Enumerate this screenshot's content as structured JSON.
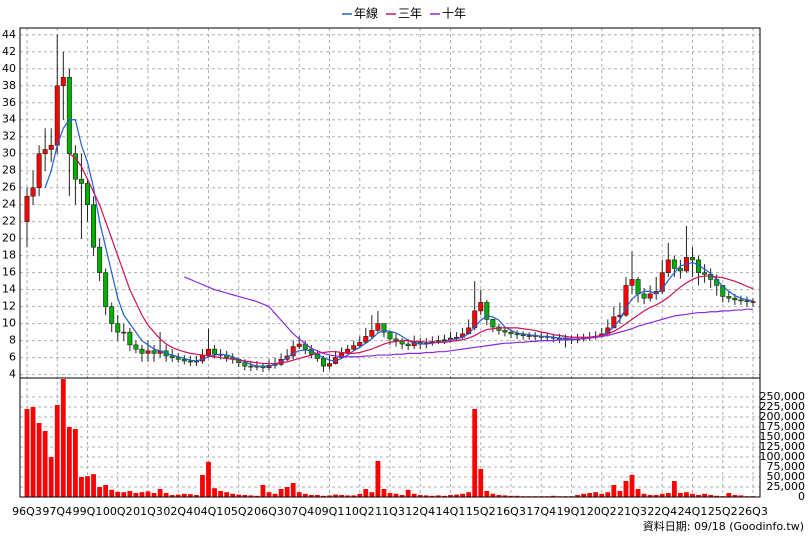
{
  "chart_data": [
    {
      "type": "candlestick",
      "categories": [
        "96Q3",
        null,
        null,
        null,
        null,
        "97Q4",
        null,
        null,
        null,
        null,
        "99Q1",
        null,
        null,
        null,
        null,
        "00Q2",
        null,
        null,
        null,
        null,
        "01Q3",
        null,
        null,
        null,
        null,
        "02Q4",
        null,
        null,
        null,
        null,
        "04Q1",
        null,
        null,
        null,
        null,
        "05Q2",
        null,
        null,
        null,
        null,
        "06Q3",
        null,
        null,
        null,
        null,
        "07Q4",
        null,
        null,
        null,
        null,
        "09Q1",
        null,
        null,
        null,
        null,
        "10Q2",
        null,
        null,
        null,
        null,
        "11Q3",
        null,
        null,
        null,
        null,
        "12Q4",
        null,
        null,
        null,
        null,
        "14Q1",
        null,
        null,
        null,
        null,
        "15Q2",
        null,
        null,
        null,
        null,
        "16Q3",
        null,
        null,
        null,
        null,
        "17Q4",
        null,
        null,
        null,
        null,
        "19Q1",
        null,
        null,
        null,
        null,
        "20Q2",
        null,
        null,
        null,
        null,
        "21Q3",
        null,
        null,
        null,
        null,
        "22Q4",
        null,
        null,
        null,
        null,
        "24Q1",
        null,
        null,
        null,
        null,
        "25Q2",
        null,
        null,
        null,
        null,
        "26Q3"
      ],
      "open": [
        22,
        25,
        26,
        30,
        30.5,
        31,
        38,
        39,
        30,
        27,
        26.5,
        24,
        19,
        16,
        12,
        10,
        9,
        9,
        7.5,
        7,
        6.5,
        6.8,
        6.5,
        6.8,
        6.2,
        6,
        5.8,
        5.6,
        5.5,
        5.6,
        6.3,
        7,
        6.4,
        6.3,
        6,
        5.8,
        5.4,
        5,
        4.9,
        5,
        4.8,
        5.1,
        5.2,
        5.8,
        6.2,
        7.3,
        7.6,
        7,
        6.4,
        5.9,
        5,
        5.3,
        6,
        6.5,
        7,
        7.4,
        7.8,
        8.5,
        9.2,
        10,
        9,
        8.2,
        8,
        7.6,
        7.4,
        7.8,
        7.6,
        7.7,
        7.9,
        8,
        8.1,
        8.3,
        8.4,
        8.8,
        9.5,
        11.5,
        12.5,
        10.5,
        9.6,
        9.2,
        9,
        8.8,
        8.7,
        8.6,
        8.6,
        8.5,
        8.5,
        8.4,
        8.3,
        8.2,
        8.2,
        8.1,
        8.2,
        8.3,
        8.4,
        8.5,
        8.8,
        9.5,
        10.8,
        11,
        14.5,
        15.2,
        13.5,
        13,
        13.5,
        13.8,
        16,
        17.5,
        16.5,
        16.2,
        17.8,
        17.5,
        16,
        15.8,
        15.2,
        14.5,
        13.2,
        13,
        12.8,
        12.7,
        12.6
      ],
      "high": [
        26,
        28,
        31,
        33,
        33,
        44,
        42,
        40,
        31,
        30,
        27,
        25,
        20,
        16.5,
        12.5,
        11,
        10,
        9.5,
        8,
        7.5,
        8,
        7.5,
        9,
        7.5,
        7,
        6.5,
        6.3,
        6.2,
        6.2,
        7,
        9.4,
        7.5,
        7,
        6.8,
        6.5,
        6,
        5.8,
        5.5,
        5.6,
        5.4,
        5.8,
        6,
        6.5,
        7,
        8,
        8.5,
        8,
        7.5,
        6.8,
        6.2,
        6.2,
        6.8,
        7.2,
        7.5,
        8,
        8.5,
        9.5,
        11,
        11.5,
        10,
        9,
        8.8,
        8.3,
        8.2,
        8.6,
        8.3,
        8.3,
        8.5,
        8.6,
        8.7,
        9,
        9,
        9.5,
        10.5,
        15,
        14,
        12.8,
        10.5,
        10,
        9.6,
        9.3,
        9.2,
        9.1,
        9,
        9,
        9,
        8.9,
        8.8,
        8.8,
        8.7,
        8.6,
        8.8,
        8.8,
        9,
        9.1,
        9.5,
        10.5,
        12,
        12.5,
        15.5,
        18.5,
        15.5,
        14.2,
        14.5,
        15.5,
        17.5,
        19.5,
        18,
        17.5,
        21.5,
        19,
        18,
        17,
        16.5,
        15.8,
        14.5,
        13.8,
        13.5,
        13.3,
        13.2,
        13
      ],
      "low": [
        19,
        24,
        25,
        28,
        29,
        30,
        34,
        25,
        24,
        20,
        22,
        18,
        15,
        11,
        9,
        8,
        8,
        6.8,
        6.5,
        5.5,
        5.5,
        5.5,
        6,
        5.5,
        5.5,
        5.4,
        5.2,
        5,
        5,
        5.3,
        6,
        5.9,
        5.8,
        5.5,
        5.3,
        4.9,
        4.5,
        4.4,
        4.5,
        4.3,
        4.5,
        4.7,
        5,
        5.6,
        5.8,
        7,
        6.4,
        5.9,
        5.5,
        4.3,
        4.6,
        5.2,
        5.9,
        6.5,
        6.8,
        7.2,
        7.6,
        8.2,
        8.8,
        8.4,
        7.5,
        7.3,
        7,
        6.9,
        7,
        7,
        7.1,
        7.4,
        7.6,
        7.6,
        7.8,
        7.9,
        8.2,
        8.7,
        9.2,
        11,
        9.8,
        9,
        8.7,
        8.5,
        8.3,
        8.2,
        8.1,
        8.1,
        8,
        8,
        7.9,
        7.8,
        7.7,
        7.2,
        7.6,
        7.7,
        7.9,
        8,
        8.1,
        8.3,
        8.5,
        9.6,
        10,
        10.8,
        13.5,
        12.5,
        12.3,
        12.6,
        12.8,
        13.5,
        15.5,
        15.5,
        15.3,
        16,
        15.5,
        14.5,
        14.8,
        14.2,
        13.3,
        12.5,
        12.5,
        12.2,
        12.2,
        12,
        12
      ],
      "close": [
        25,
        26,
        30,
        30.5,
        31,
        38,
        39,
        30,
        27,
        26.5,
        24,
        19,
        16,
        12,
        10,
        9,
        9,
        7.5,
        7,
        6.5,
        6.8,
        6.5,
        6.8,
        6.2,
        6,
        5.8,
        5.6,
        5.5,
        5.6,
        6.3,
        7,
        6.4,
        6.3,
        6,
        5.8,
        5.4,
        5,
        4.9,
        5,
        4.8,
        5.1,
        5.2,
        5.8,
        6.2,
        7.3,
        7.6,
        7,
        6.4,
        5.9,
        5,
        5.3,
        6,
        6.5,
        7,
        7.4,
        7.8,
        8.5,
        9.2,
        10,
        9,
        8.2,
        8,
        7.6,
        7.4,
        7.8,
        7.6,
        7.7,
        7.9,
        8,
        8.1,
        8.3,
        8.4,
        8.8,
        9.5,
        11.5,
        12.5,
        10.5,
        9.6,
        9.2,
        9,
        8.8,
        8.7,
        8.6,
        8.6,
        8.5,
        8.5,
        8.4,
        8.3,
        8.2,
        8.2,
        8.1,
        8.2,
        8.3,
        8.4,
        8.5,
        8.8,
        9.5,
        10.8,
        11,
        14.5,
        15.2,
        13.5,
        13,
        13.5,
        13.8,
        16,
        17.5,
        16.5,
        16.2,
        17.8,
        17.5,
        16,
        15.8,
        15.2,
        14.5,
        13.2,
        13,
        12.8,
        12.7,
        12.6,
        12.6
      ],
      "up_color": "#ff0000",
      "down_color": "#00b000",
      "series": [
        {
          "name": "年線",
          "color": "#1f5fd0",
          "values": [
            null,
            null,
            null,
            26,
            28,
            31,
            33,
            34,
            34,
            31,
            29,
            26,
            22,
            19,
            16,
            13,
            11,
            10,
            9,
            8,
            7.5,
            7,
            6.8,
            6.5,
            6.3,
            6.1,
            5.9,
            5.7,
            5.6,
            5.8,
            6.1,
            6.3,
            6.4,
            6.3,
            6.1,
            5.8,
            5.5,
            5.2,
            5,
            5,
            5,
            5.2,
            5.5,
            6,
            6.5,
            6.8,
            6.9,
            6.8,
            6.4,
            6,
            5.7,
            5.6,
            5.9,
            6.3,
            6.8,
            7.2,
            7.7,
            8.2,
            8.9,
            9.2,
            9.1,
            8.9,
            8.5,
            8,
            7.7,
            7.6,
            7.6,
            7.7,
            7.8,
            7.9,
            8.1,
            8.2,
            8.4,
            8.8,
            9.6,
            10.4,
            10.9,
            10.8,
            10.4,
            9.6,
            9.2,
            8.9,
            8.8,
            8.7,
            8.6,
            8.5,
            8.5,
            8.4,
            8.3,
            8.3,
            8.2,
            8.2,
            8.2,
            8.3,
            8.4,
            8.6,
            9,
            9.6,
            10.5,
            11.8,
            12.9,
            13.5,
            13.8,
            13.8,
            13.5,
            14.1,
            15.1,
            16,
            16.8,
            17,
            17.2,
            16.9,
            16.4,
            15.9,
            15.2,
            14.4,
            13.8,
            13.3,
            13,
            12.8,
            12.7
          ]
        },
        {
          "name": "三年",
          "color": "#d0105a",
          "values": [
            null,
            null,
            null,
            null,
            null,
            null,
            null,
            30,
            29.5,
            28.5,
            27,
            25.5,
            24,
            22,
            20,
            18,
            16,
            14,
            12.5,
            11,
            9.8,
            9,
            8.2,
            7.6,
            7.2,
            6.9,
            6.7,
            6.5,
            6.4,
            6.3,
            6.2,
            6.1,
            6,
            5.9,
            5.8,
            5.7,
            5.6,
            5.5,
            5.4,
            5.3,
            5.3,
            5.3,
            5.4,
            5.5,
            5.7,
            5.9,
            6.1,
            6.3,
            6.5,
            6.6,
            6.7,
            6.7,
            6.6,
            6.5,
            6.5,
            6.6,
            6.8,
            7,
            7.3,
            7.6,
            7.8,
            7.9,
            8,
            8,
            7.9,
            7.9,
            7.8,
            7.8,
            7.8,
            7.8,
            7.9,
            8,
            8.1,
            8.3,
            8.6,
            9,
            9.3,
            9.4,
            9.5,
            9.5,
            9.5,
            9.5,
            9.4,
            9.3,
            9.2,
            9,
            8.9,
            8.7,
            8.6,
            8.5,
            8.4,
            8.4,
            8.4,
            8.4,
            8.5,
            8.6,
            8.8,
            9.1,
            9.5,
            10,
            10.5,
            11,
            11.5,
            11.9,
            12.2,
            12.6,
            13.1,
            13.7,
            14.3,
            14.8,
            15.2,
            15.5,
            15.6,
            15.6,
            15.5,
            15.4,
            15.2,
            15,
            14.7,
            14.4,
            14.1
          ]
        },
        {
          "name": "十年",
          "color": "#8a2be2",
          "values": [
            null,
            null,
            null,
            null,
            null,
            null,
            null,
            null,
            null,
            null,
            null,
            null,
            null,
            null,
            null,
            null,
            null,
            null,
            null,
            null,
            null,
            null,
            null,
            null,
            null,
            null,
            15.5,
            15.2,
            14.9,
            14.6,
            14.3,
            14,
            13.8,
            13.6,
            13.4,
            13.2,
            13,
            12.8,
            12.6,
            12.3,
            12,
            11.2,
            10.4,
            9.6,
            8.8,
            8.2,
            7.6,
            7.1,
            6.8,
            6.5,
            6.3,
            6.2,
            6.1,
            6.1,
            6.1,
            6.1,
            6.2,
            6.2,
            6.3,
            6.3,
            6.3,
            6.4,
            6.4,
            6.5,
            6.5,
            6.5,
            6.6,
            6.6,
            6.7,
            6.7,
            6.8,
            6.9,
            7,
            7.1,
            7.2,
            7.3,
            7.4,
            7.5,
            7.6,
            7.7,
            7.7,
            7.8,
            7.8,
            7.9,
            7.9,
            8,
            8,
            8,
            8.1,
            8.1,
            8.1,
            8.2,
            8.2,
            8.3,
            8.4,
            8.5,
            8.6,
            8.8,
            9,
            9.2,
            9.4,
            9.7,
            9.9,
            10.1,
            10.3,
            10.5,
            10.7,
            10.9,
            11,
            11.1,
            11.2,
            11.3,
            11.3,
            11.4,
            11.4,
            11.5,
            11.5,
            11.6,
            11.6,
            11.7,
            11.7
          ]
        }
      ],
      "ylim": [
        3.6,
        44.8
      ],
      "yticks": [
        4,
        6,
        8,
        10,
        12,
        14,
        16,
        18,
        20,
        22,
        24,
        26,
        28,
        30,
        32,
        34,
        36,
        38,
        40,
        42,
        44
      ],
      "grid": true,
      "legend": "top"
    },
    {
      "type": "bar",
      "color": "#ff0000",
      "values": [
        220000,
        225000,
        185000,
        165000,
        100000,
        230000,
        295000,
        175000,
        170000,
        50000,
        52000,
        57000,
        25000,
        30000,
        18000,
        13000,
        12000,
        15000,
        10000,
        12000,
        14000,
        10000,
        20000,
        10000,
        5000,
        6000,
        8000,
        7000,
        5000,
        55000,
        88000,
        22000,
        15000,
        12000,
        8000,
        6000,
        5000,
        4000,
        3000,
        30000,
        12000,
        8000,
        20000,
        25000,
        35000,
        12000,
        8000,
        5000,
        5000,
        3000,
        4000,
        6000,
        5000,
        4000,
        4000,
        8000,
        20000,
        12000,
        90000,
        20000,
        10000,
        8000,
        5000,
        18000,
        8000,
        5000,
        4000,
        3000,
        4000,
        3000,
        5000,
        6000,
        8000,
        12000,
        220000,
        70000,
        15000,
        8000,
        5000,
        4000,
        3000,
        3000,
        2000,
        2000,
        2000,
        2000,
        2000,
        3000,
        2000,
        2000,
        2000,
        5000,
        8000,
        10000,
        12000,
        8000,
        12000,
        30000,
        15000,
        40000,
        55000,
        20000,
        8000,
        5000,
        5000,
        8000,
        10000,
        40000,
        10000,
        12000,
        8000,
        5000,
        8000,
        5000,
        3000,
        2000,
        10000,
        5000,
        4000,
        2000,
        2000
      ],
      "ylim": [
        0,
        297500
      ],
      "yticks": [
        0,
        {
          "value": 25000,
          "label": "25,000"
        },
        {
          "value": 50000,
          "label": "50,000"
        },
        {
          "value": 75000,
          "label": "75,000"
        },
        {
          "value": 100000,
          "label": "100,000"
        },
        {
          "value": 125000,
          "label": "125,000"
        },
        {
          "value": 150000,
          "label": "150,000"
        },
        {
          "value": 175000,
          "label": "175,000"
        },
        {
          "value": 200000,
          "label": "200,000"
        },
        {
          "value": 225000,
          "label": "225,000"
        },
        {
          "value": 250000,
          "label": "250,000"
        }
      ],
      "grid": true
    }
  ],
  "source": "資料日期: 09/18 (Goodinfo.tw)"
}
